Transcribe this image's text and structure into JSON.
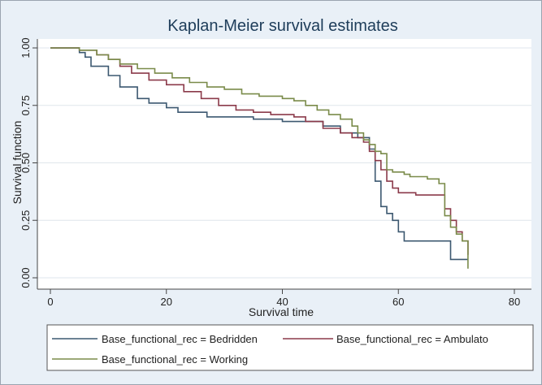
{
  "chart_data": {
    "type": "line",
    "step": true,
    "title": "Kaplan-Meier survival estimates",
    "xlabel": "Survival time",
    "ylabel": "Survival function",
    "xlim": [
      0,
      80
    ],
    "ylim": [
      0,
      1
    ],
    "xticks": [
      "0",
      "20",
      "40",
      "60",
      "80"
    ],
    "yticks": [
      "0.00",
      "0.25",
      "0.50",
      "0.75",
      "1.00"
    ],
    "grid": "horizontal",
    "legend_position": "bottom",
    "series": [
      {
        "name": "Base_functional_rec = Bedridden",
        "color": "#3c5870",
        "points": [
          [
            0,
            1.0
          ],
          [
            5,
            0.98
          ],
          [
            6,
            0.96
          ],
          [
            7,
            0.92
          ],
          [
            10,
            0.88
          ],
          [
            12,
            0.83
          ],
          [
            15,
            0.78
          ],
          [
            17,
            0.76
          ],
          [
            20,
            0.74
          ],
          [
            22,
            0.72
          ],
          [
            25,
            0.72
          ],
          [
            27,
            0.7
          ],
          [
            30,
            0.7
          ],
          [
            35,
            0.69
          ],
          [
            40,
            0.68
          ],
          [
            44,
            0.68
          ],
          [
            47,
            0.66
          ],
          [
            50,
            0.63
          ],
          [
            53,
            0.61
          ],
          [
            55,
            0.56
          ],
          [
            56,
            0.42
          ],
          [
            57,
            0.31
          ],
          [
            58,
            0.28
          ],
          [
            59,
            0.25
          ],
          [
            60,
            0.2
          ],
          [
            61,
            0.16
          ],
          [
            63,
            0.16
          ],
          [
            68,
            0.16
          ],
          [
            69,
            0.08
          ],
          [
            72,
            0.08
          ]
        ]
      },
      {
        "name": "Base_functional_rec = Ambulatory",
        "color": "#8b3a4a",
        "points": [
          [
            0,
            1.0
          ],
          [
            5,
            0.99
          ],
          [
            8,
            0.97
          ],
          [
            10,
            0.95
          ],
          [
            12,
            0.92
          ],
          [
            14,
            0.89
          ],
          [
            17,
            0.86
          ],
          [
            20,
            0.84
          ],
          [
            23,
            0.81
          ],
          [
            26,
            0.78
          ],
          [
            29,
            0.75
          ],
          [
            32,
            0.73
          ],
          [
            35,
            0.72
          ],
          [
            38,
            0.71
          ],
          [
            42,
            0.7
          ],
          [
            44,
            0.68
          ],
          [
            47,
            0.65
          ],
          [
            50,
            0.63
          ],
          [
            52,
            0.61
          ],
          [
            54,
            0.59
          ],
          [
            55,
            0.55
          ],
          [
            56,
            0.51
          ],
          [
            57,
            0.47
          ],
          [
            58,
            0.42
          ],
          [
            59,
            0.39
          ],
          [
            60,
            0.37
          ],
          [
            63,
            0.36
          ],
          [
            65,
            0.36
          ],
          [
            66,
            0.36
          ],
          [
            68,
            0.3
          ],
          [
            69,
            0.25
          ],
          [
            70,
            0.2
          ],
          [
            71,
            0.16
          ],
          [
            72,
            0.1
          ]
        ]
      },
      {
        "name": "Base_functional_rec = Working",
        "color": "#7a8b4a",
        "points": [
          [
            0,
            1.0
          ],
          [
            5,
            0.99
          ],
          [
            8,
            0.97
          ],
          [
            10,
            0.95
          ],
          [
            12,
            0.93
          ],
          [
            15,
            0.91
          ],
          [
            18,
            0.89
          ],
          [
            21,
            0.87
          ],
          [
            24,
            0.85
          ],
          [
            27,
            0.83
          ],
          [
            30,
            0.82
          ],
          [
            33,
            0.8
          ],
          [
            36,
            0.79
          ],
          [
            40,
            0.78
          ],
          [
            42,
            0.77
          ],
          [
            44,
            0.75
          ],
          [
            46,
            0.73
          ],
          [
            48,
            0.71
          ],
          [
            50,
            0.69
          ],
          [
            52,
            0.66
          ],
          [
            53,
            0.63
          ],
          [
            54,
            0.6
          ],
          [
            55,
            0.58
          ],
          [
            56,
            0.55
          ],
          [
            57,
            0.54
          ],
          [
            58,
            0.47
          ],
          [
            59,
            0.46
          ],
          [
            61,
            0.45
          ],
          [
            62,
            0.44
          ],
          [
            65,
            0.43
          ],
          [
            67,
            0.41
          ],
          [
            68,
            0.27
          ],
          [
            69,
            0.22
          ],
          [
            70,
            0.19
          ],
          [
            71,
            0.16
          ],
          [
            72,
            0.04
          ]
        ]
      }
    ]
  },
  "legend_labels": {
    "bedridden": "Base_functional_rec = Bedridden",
    "ambulatory": "Base_functional_rec = Ambulato",
    "working": "Base_functional_rec = Working"
  }
}
